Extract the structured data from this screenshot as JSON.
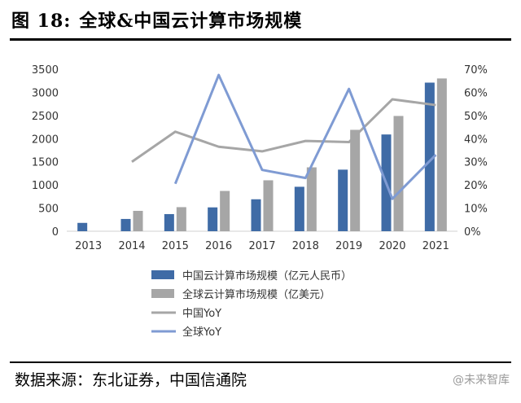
{
  "header": {
    "figure_number": "图 18:",
    "title": "全球&中国云计算市场规模"
  },
  "footer": {
    "source": "数据来源：东北证券，中国信通院",
    "watermark": "@未来智库"
  },
  "colors": {
    "china_bar": "#3F6BA6",
    "global_bar": "#A6A6A6",
    "china_yoy_line": "#A6A6A6",
    "global_yoy_line": "#7F9BD3"
  },
  "chart_data": {
    "type": "bar",
    "categories": [
      "2013",
      "2014",
      "2015",
      "2016",
      "2017",
      "2018",
      "2019",
      "2020",
      "2021"
    ],
    "y_left": {
      "ylim": [
        0,
        3500
      ],
      "ticks": [
        "0",
        "500",
        "1000",
        "1500",
        "2000",
        "2500",
        "3000",
        "3500"
      ]
    },
    "y_right": {
      "ylim": [
        0,
        70
      ],
      "ticks": [
        "0%",
        "10%",
        "20%",
        "30%",
        "40%",
        "50%",
        "60%",
        "70%"
      ]
    },
    "series": [
      {
        "name": "中国云计算市场规模（亿元人民币）",
        "kind": "bar",
        "axis": "left",
        "values": [
          180,
          265,
          370,
          515,
          690,
          960,
          1330,
          2090,
          3210
        ]
      },
      {
        "name": "全球云计算市场规模（亿美元）",
        "kind": "bar",
        "axis": "left",
        "values": [
          null,
          440,
          520,
          870,
          1100,
          1380,
          2190,
          2490,
          3300
        ]
      },
      {
        "name": "中国YoY",
        "kind": "line",
        "axis": "right",
        "values": [
          null,
          30,
          43,
          36.5,
          34.5,
          39,
          38.5,
          57,
          54.5
        ]
      },
      {
        "name": "全球YoY",
        "kind": "line",
        "axis": "right",
        "values": [
          null,
          null,
          20.5,
          67.5,
          26.5,
          23,
          61.5,
          14,
          33
        ]
      }
    ],
    "grid": false,
    "legend_position": "bottom"
  }
}
